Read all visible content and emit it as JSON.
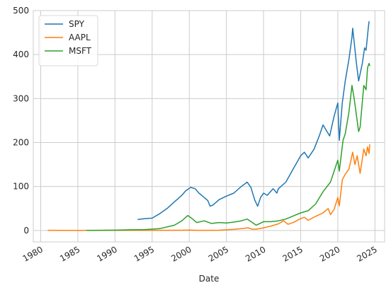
{
  "chart_data": {
    "type": "line",
    "title": "",
    "xlabel": "Date",
    "ylabel": "",
    "xlim": [
      1979.0,
      2026.3
    ],
    "ylim": [
      -26,
      500
    ],
    "grid": true,
    "legend_position": "top-left",
    "x_ticks": [
      1980,
      1985,
      1990,
      1995,
      2000,
      2005,
      2010,
      2015,
      2020,
      2025
    ],
    "y_ticks": [
      0,
      100,
      200,
      300,
      400,
      500
    ],
    "series": [
      {
        "name": "SPY",
        "color": "#1f77b4",
        "points": [
          [
            1993.1,
            25
          ],
          [
            1994.0,
            27
          ],
          [
            1995.0,
            28
          ],
          [
            1996.0,
            38
          ],
          [
            1997.0,
            50
          ],
          [
            1998.0,
            65
          ],
          [
            1999.0,
            80
          ],
          [
            1999.5,
            90
          ],
          [
            2000.2,
            98
          ],
          [
            2000.8,
            95
          ],
          [
            2001.3,
            85
          ],
          [
            2001.8,
            78
          ],
          [
            2002.5,
            68
          ],
          [
            2002.8,
            55
          ],
          [
            2003.2,
            58
          ],
          [
            2004.0,
            70
          ],
          [
            2005.0,
            78
          ],
          [
            2006.0,
            85
          ],
          [
            2007.0,
            100
          ],
          [
            2007.8,
            110
          ],
          [
            2008.3,
            98
          ],
          [
            2008.8,
            70
          ],
          [
            2009.2,
            55
          ],
          [
            2009.6,
            75
          ],
          [
            2010.0,
            85
          ],
          [
            2010.5,
            80
          ],
          [
            2011.3,
            95
          ],
          [
            2011.8,
            85
          ],
          [
            2012.0,
            95
          ],
          [
            2013.0,
            110
          ],
          [
            2014.0,
            140
          ],
          [
            2015.0,
            170
          ],
          [
            2015.5,
            178
          ],
          [
            2016.0,
            165
          ],
          [
            2016.8,
            185
          ],
          [
            2017.5,
            215
          ],
          [
            2018.0,
            240
          ],
          [
            2018.9,
            215
          ],
          [
            2019.5,
            260
          ],
          [
            2020.0,
            290
          ],
          [
            2020.2,
            205
          ],
          [
            2020.6,
            290
          ],
          [
            2021.0,
            340
          ],
          [
            2021.5,
            390
          ],
          [
            2021.9,
            440
          ],
          [
            2022.0,
            460
          ],
          [
            2022.5,
            380
          ],
          [
            2022.8,
            340
          ],
          [
            2023.3,
            380
          ],
          [
            2023.6,
            415
          ],
          [
            2023.8,
            410
          ],
          [
            2024.1,
            460
          ],
          [
            2024.2,
            475
          ]
        ]
      },
      {
        "name": "AAPL",
        "color": "#ff7f0e",
        "points": [
          [
            1981.0,
            0.3
          ],
          [
            1985.0,
            0.2
          ],
          [
            1990.0,
            0.3
          ],
          [
            1995.0,
            0.3
          ],
          [
            1999.0,
            0.6
          ],
          [
            2000.0,
            1.0
          ],
          [
            2001.0,
            0.4
          ],
          [
            2003.0,
            0.3
          ],
          [
            2004.0,
            0.6
          ],
          [
            2005.0,
            1.5
          ],
          [
            2006.0,
            2.5
          ],
          [
            2007.0,
            4
          ],
          [
            2007.9,
            6
          ],
          [
            2008.5,
            3
          ],
          [
            2009.0,
            3
          ],
          [
            2010.0,
            6
          ],
          [
            2011.0,
            10
          ],
          [
            2012.0,
            15
          ],
          [
            2012.7,
            22
          ],
          [
            2013.3,
            14
          ],
          [
            2014.0,
            18
          ],
          [
            2015.0,
            27
          ],
          [
            2015.5,
            30
          ],
          [
            2016.0,
            23
          ],
          [
            2017.0,
            32
          ],
          [
            2018.0,
            40
          ],
          [
            2018.7,
            50
          ],
          [
            2019.0,
            36
          ],
          [
            2019.5,
            48
          ],
          [
            2020.0,
            75
          ],
          [
            2020.2,
            56
          ],
          [
            2020.6,
            115
          ],
          [
            2021.0,
            128
          ],
          [
            2021.5,
            140
          ],
          [
            2022.0,
            178
          ],
          [
            2022.3,
            150
          ],
          [
            2022.6,
            170
          ],
          [
            2023.0,
            130
          ],
          [
            2023.5,
            185
          ],
          [
            2023.8,
            170
          ],
          [
            2024.0,
            190
          ],
          [
            2024.2,
            175
          ],
          [
            2024.3,
            195
          ]
        ]
      },
      {
        "name": "MSFT",
        "color": "#2ca02c",
        "points": [
          [
            1986.2,
            0.1
          ],
          [
            1988.0,
            0.3
          ],
          [
            1990.0,
            0.7
          ],
          [
            1992.0,
            1.5
          ],
          [
            1994.0,
            2.0
          ],
          [
            1996.0,
            4
          ],
          [
            1998.0,
            12
          ],
          [
            1999.0,
            22
          ],
          [
            1999.8,
            34
          ],
          [
            2000.3,
            28
          ],
          [
            2001.0,
            18
          ],
          [
            2002.0,
            22
          ],
          [
            2003.0,
            16
          ],
          [
            2004.0,
            18
          ],
          [
            2005.0,
            17
          ],
          [
            2006.0,
            19
          ],
          [
            2007.0,
            22
          ],
          [
            2007.8,
            26
          ],
          [
            2008.5,
            18
          ],
          [
            2009.0,
            12
          ],
          [
            2010.0,
            20
          ],
          [
            2011.0,
            20
          ],
          [
            2012.0,
            22
          ],
          [
            2013.0,
            26
          ],
          [
            2014.0,
            33
          ],
          [
            2015.0,
            40
          ],
          [
            2016.0,
            45
          ],
          [
            2017.0,
            60
          ],
          [
            2018.0,
            88
          ],
          [
            2019.0,
            110
          ],
          [
            2020.0,
            160
          ],
          [
            2020.2,
            135
          ],
          [
            2020.7,
            205
          ],
          [
            2021.0,
            220
          ],
          [
            2021.5,
            270
          ],
          [
            2021.9,
            330
          ],
          [
            2022.2,
            300
          ],
          [
            2022.8,
            225
          ],
          [
            2023.0,
            235
          ],
          [
            2023.5,
            330
          ],
          [
            2023.8,
            320
          ],
          [
            2024.0,
            370
          ],
          [
            2024.2,
            380
          ],
          [
            2024.3,
            375
          ]
        ]
      }
    ]
  }
}
